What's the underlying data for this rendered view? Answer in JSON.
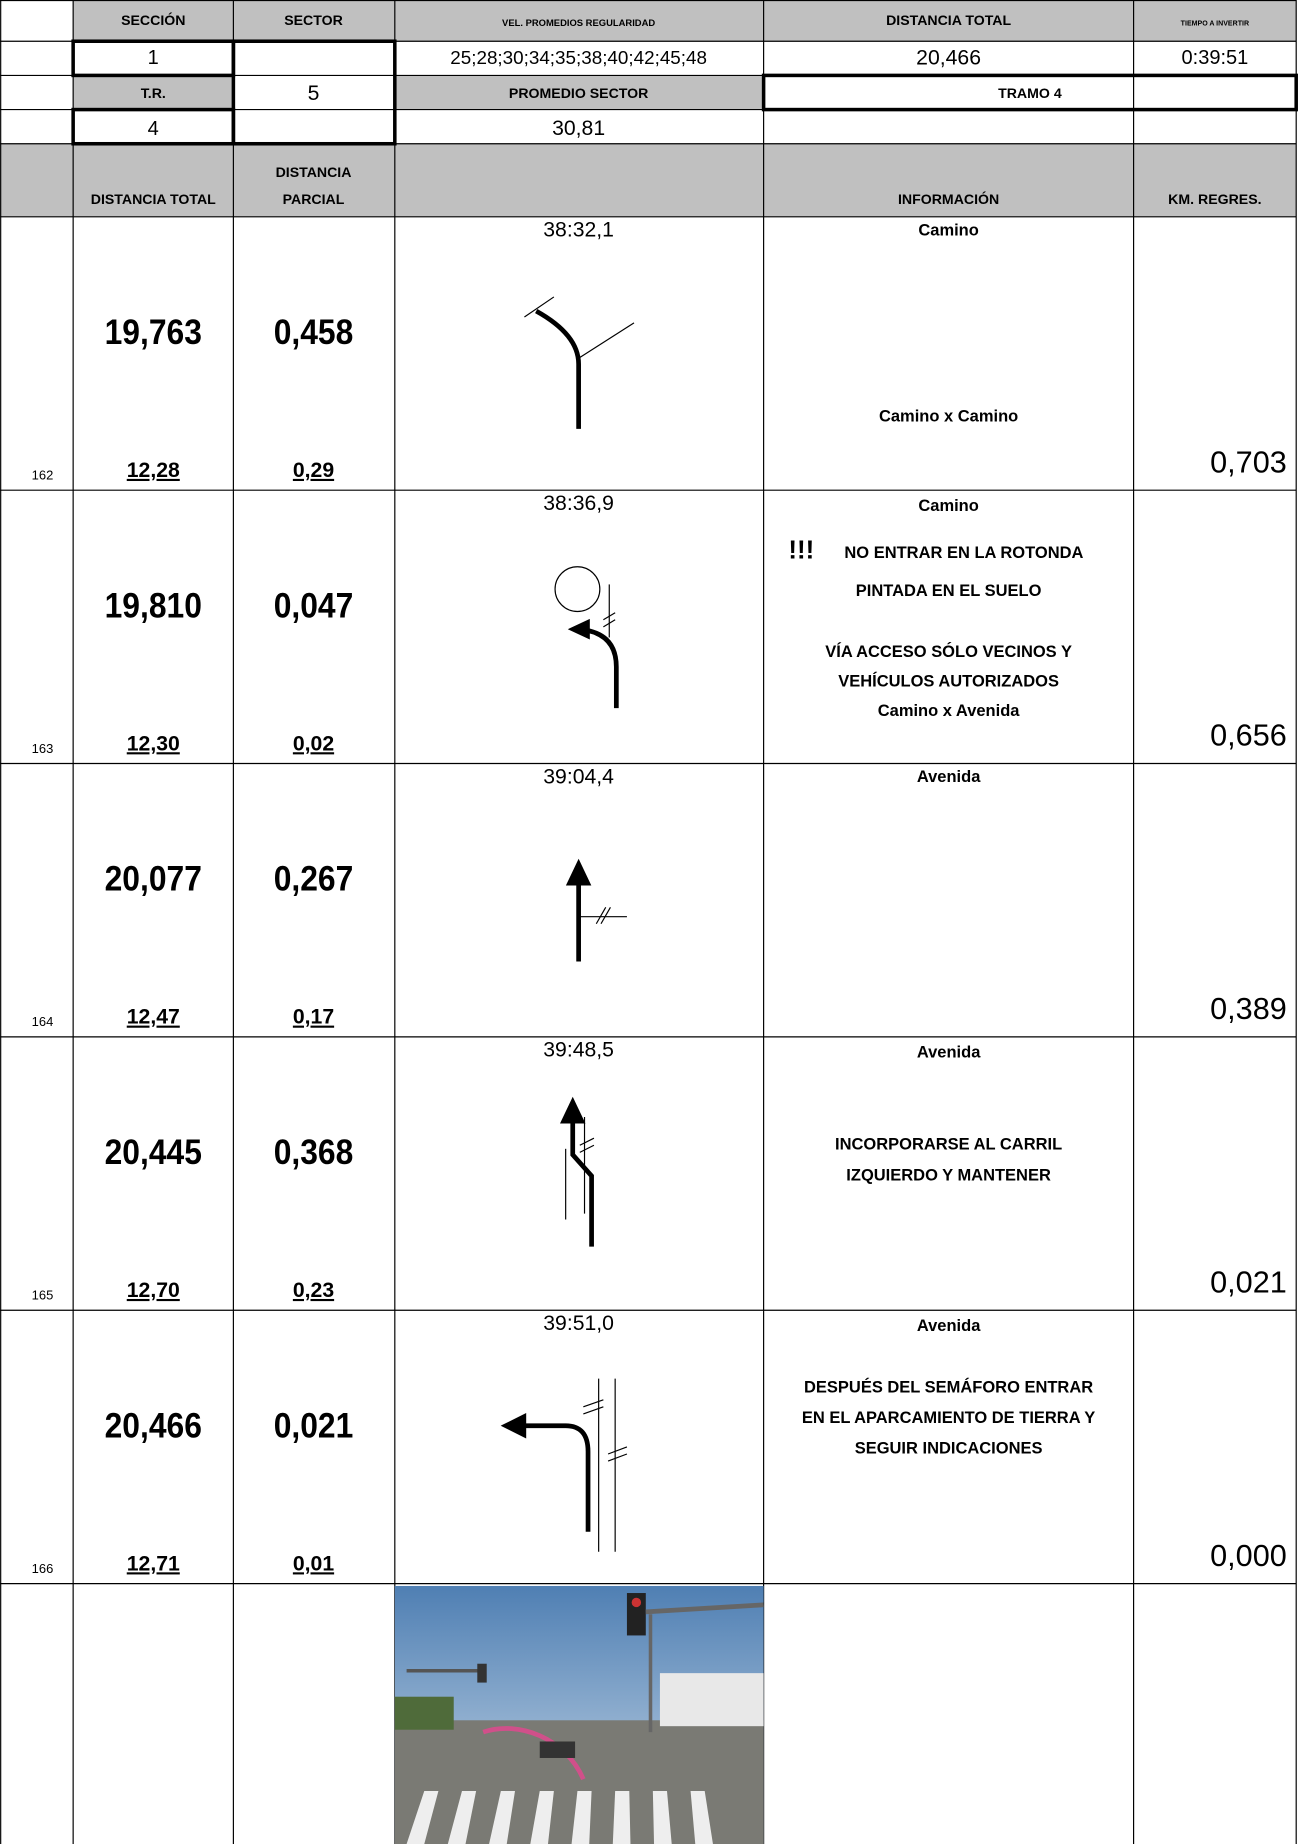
{
  "header": {
    "labels": {
      "section": "SECCIÓN",
      "sector": "SECTOR",
      "speeds": "VEL. PROMEDIOS REGULARIDAD",
      "total_distance": "DISTANCIA TOTAL",
      "time": "TIEMPO A INVERTIR",
      "tr": "T.R.",
      "sector_average": "PROMEDIO SECTOR"
    },
    "values": {
      "section": "1",
      "sector": "5",
      "speeds": "25;28;30;34;35;38;40;42;45;48",
      "total_distance": "20,466",
      "time": "0:39:51",
      "tr": "4",
      "sector_average": "30,81",
      "stage": "TRAMO 4"
    },
    "columns": {
      "total": "DISTANCIA TOTAL",
      "partial": [
        "DISTANCIA",
        "PARCIAL"
      ],
      "info": "INFORMACIÓN",
      "km": "KM. REGRES."
    }
  },
  "rows": [
    {
      "index": "162",
      "total": "19,763",
      "partial": "0,458",
      "sub_total": "12,28",
      "sub_partial": "0,29",
      "time": "38:32,1",
      "info": [
        "Camino",
        "Camino x Camino"
      ],
      "km": "0,703"
    },
    {
      "index": "163",
      "total": "19,810",
      "partial": "0,047",
      "sub_total": "12,30",
      "sub_partial": "0,02",
      "time": "38:36,9",
      "warning": "!!!",
      "info": [
        "Camino",
        "NO ENTRAR EN LA ROTONDA",
        "PINTADA EN EL SUELO",
        "VÍA ACCESO SÓLO VECINOS Y",
        "VEHÍCULOS AUTORIZADOS",
        "Camino x Avenida"
      ],
      "km": "0,656"
    },
    {
      "index": "164",
      "total": "20,077",
      "partial": "0,267",
      "sub_total": "12,47",
      "sub_partial": "0,17",
      "time": "39:04,4",
      "info": [
        "Avenida"
      ],
      "km": "0,389"
    },
    {
      "index": "165",
      "total": "20,445",
      "partial": "0,368",
      "sub_total": "12,70",
      "sub_partial": "0,23",
      "time": "39:48,5",
      "info": [
        "Avenida",
        "INCORPORARSE AL CARRIL",
        "IZQUIERDO Y MANTENER"
      ],
      "km": "0,021"
    },
    {
      "index": "166",
      "total": "20,466",
      "partial": "0,021",
      "sub_total": "12,71",
      "sub_partial": "0,01",
      "time": "39:51,0",
      "info": [
        "Avenida",
        "DESPUÉS DEL SEMÁFORO ENTRAR",
        "EN EL APARCAMIENTO DE TIERRA Y",
        "SEGUIR INDICACIONES"
      ],
      "km": "0,000"
    }
  ]
}
